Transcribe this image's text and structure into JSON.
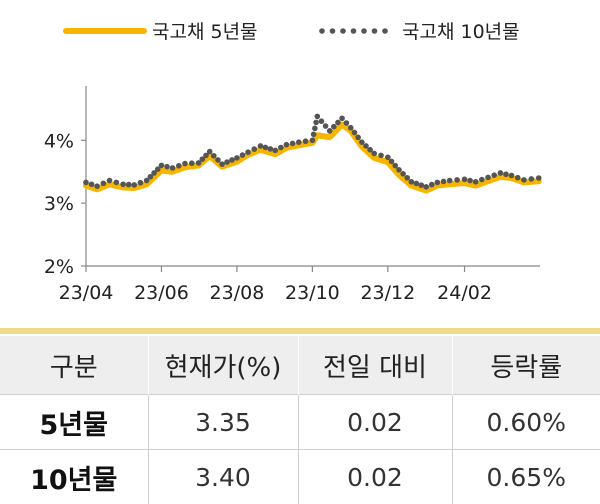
{
  "chart_data": {
    "type": "line",
    "title": "",
    "xlabel": "",
    "ylabel": "",
    "ylim": [
      2,
      4.8
    ],
    "xlim": [
      "2023-04-01",
      "2024-04-02"
    ],
    "yticks": [
      2,
      3,
      4
    ],
    "ytick_labels": [
      "2%",
      "3%",
      "4%"
    ],
    "xticks": [
      "2023-04-01",
      "2023-06-01",
      "2023-08-01",
      "2023-10-01",
      "2023-12-01",
      "2024-02-01"
    ],
    "xtick_labels": [
      "23/04",
      "23/06",
      "23/08",
      "23/10",
      "23/12",
      "24/02"
    ],
    "legend_position": "top",
    "series": [
      {
        "name": "국고채 5년물",
        "style": "line",
        "color": "#f7b500",
        "x": [
          "2023-04-01",
          "2023-04-10",
          "2023-04-20",
          "2023-05-01",
          "2023-05-10",
          "2023-05-20",
          "2023-06-01",
          "2023-06-10",
          "2023-06-20",
          "2023-07-01",
          "2023-07-10",
          "2023-07-20",
          "2023-08-01",
          "2023-08-10",
          "2023-08-20",
          "2023-09-01",
          "2023-09-10",
          "2023-09-20",
          "2023-10-01",
          "2023-10-05",
          "2023-10-15",
          "2023-10-25",
          "2023-11-01",
          "2023-11-10",
          "2023-11-20",
          "2023-12-01",
          "2023-12-10",
          "2023-12-20",
          "2024-01-01",
          "2024-01-10",
          "2024-01-20",
          "2024-02-01",
          "2024-02-10",
          "2024-02-20",
          "2024-03-01",
          "2024-03-10",
          "2024-03-20",
          "2024-04-01"
        ],
        "values": [
          3.28,
          3.22,
          3.3,
          3.25,
          3.24,
          3.3,
          3.52,
          3.5,
          3.57,
          3.6,
          3.75,
          3.58,
          3.66,
          3.77,
          3.85,
          3.78,
          3.88,
          3.92,
          3.96,
          4.08,
          4.05,
          4.25,
          4.15,
          3.9,
          3.72,
          3.65,
          3.45,
          3.28,
          3.2,
          3.28,
          3.3,
          3.32,
          3.28,
          3.35,
          3.42,
          3.4,
          3.33,
          3.35
        ]
      },
      {
        "name": "국고채 10년물",
        "style": "dotted",
        "color": "#555555",
        "x": [
          "2023-04-01",
          "2023-04-10",
          "2023-04-20",
          "2023-05-01",
          "2023-05-10",
          "2023-05-20",
          "2023-06-01",
          "2023-06-10",
          "2023-06-20",
          "2023-07-01",
          "2023-07-10",
          "2023-07-20",
          "2023-08-01",
          "2023-08-10",
          "2023-08-20",
          "2023-09-01",
          "2023-09-10",
          "2023-09-20",
          "2023-10-01",
          "2023-10-05",
          "2023-10-15",
          "2023-10-25",
          "2023-11-01",
          "2023-11-10",
          "2023-11-20",
          "2023-12-01",
          "2023-12-10",
          "2023-12-20",
          "2024-01-01",
          "2024-01-10",
          "2024-01-20",
          "2024-02-01",
          "2024-02-10",
          "2024-02-20",
          "2024-03-01",
          "2024-03-10",
          "2024-03-20",
          "2024-04-01"
        ],
        "values": [
          3.33,
          3.27,
          3.36,
          3.3,
          3.29,
          3.36,
          3.6,
          3.56,
          3.63,
          3.64,
          3.82,
          3.62,
          3.72,
          3.81,
          3.91,
          3.84,
          3.93,
          3.97,
          4.0,
          4.38,
          4.15,
          4.35,
          4.2,
          3.97,
          3.79,
          3.73,
          3.53,
          3.34,
          3.26,
          3.33,
          3.36,
          3.38,
          3.34,
          3.41,
          3.48,
          3.44,
          3.37,
          3.4
        ]
      }
    ]
  },
  "table": {
    "headers": [
      "구분",
      "현재가(%)",
      "전일 대비",
      "등락률"
    ],
    "rows": [
      {
        "label": "5년물",
        "price": "3.35",
        "change": "0.02",
        "rate": "0.60%"
      },
      {
        "label": "10년물",
        "price": "3.40",
        "change": "0.02",
        "rate": "0.65%"
      }
    ]
  }
}
